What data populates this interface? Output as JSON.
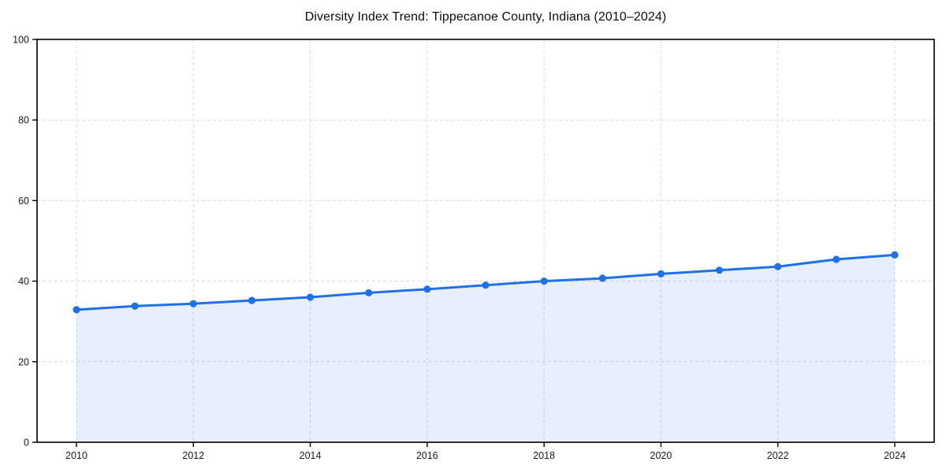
{
  "chart_data": {
    "type": "area",
    "title": "Diversity Index Trend: Tippecanoe County, Indiana (2010–2024)",
    "x": [
      2010,
      2011,
      2012,
      2013,
      2014,
      2015,
      2016,
      2017,
      2018,
      2019,
      2020,
      2021,
      2022,
      2023,
      2024
    ],
    "series": [
      {
        "name": "Diversity Index",
        "values": [
          32.9,
          33.8,
          34.4,
          35.2,
          36.0,
          37.1,
          38.0,
          39.0,
          40.0,
          40.7,
          41.8,
          42.7,
          43.6,
          45.4,
          46.5
        ]
      }
    ],
    "xlabel": "",
    "ylabel": "",
    "ylim": [
      0,
      100
    ],
    "yticks": [
      0,
      20,
      40,
      60,
      80,
      100
    ],
    "xticks": [
      2010,
      2012,
      2014,
      2016,
      2018,
      2020,
      2022,
      2024
    ],
    "grid": true,
    "grid_style": "dashed",
    "legend": "none",
    "marker": "circle",
    "colors": {
      "line": "#2070e8",
      "marker": "#2070e8",
      "fill": "#2070e8",
      "grid": "#d9d9d9",
      "axis": "#000000",
      "text": "#1a1a1a",
      "background": "#ffffff"
    },
    "fill_opacity": 0.11
  }
}
